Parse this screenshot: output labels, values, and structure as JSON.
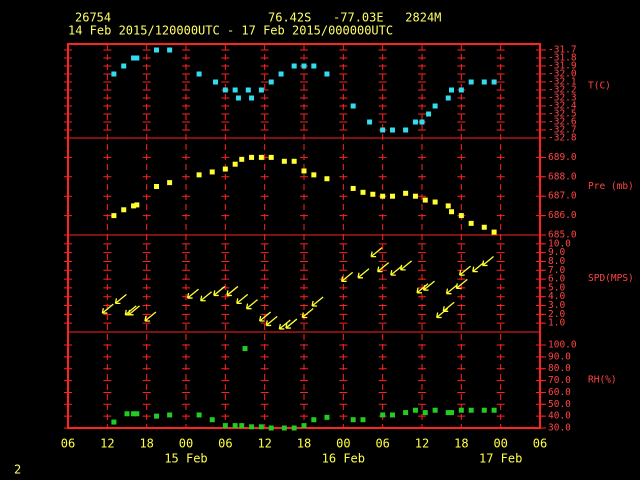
{
  "header": {
    "station": "26754",
    "location": "76.42S   -77.03E   2824M",
    "period": "14 Feb 2015/120000UTC - 17 Feb 2015/000000UTC"
  },
  "page_number": "2",
  "time_axis": {
    "xlim": [
      6,
      78
    ],
    "xticks": [
      {
        "value": 6,
        "label": "06"
      },
      12,
      18,
      {
        "value": 24,
        "label": "00"
      },
      {
        "value": 30,
        "label": "06"
      },
      {
        "value": 36,
        "label": "12"
      },
      {
        "value": 42,
        "label": "18"
      },
      {
        "value": 48,
        "label": "00"
      },
      {
        "value": 54,
        "label": "06"
      },
      {
        "value": 60,
        "label": "12"
      },
      {
        "value": 66,
        "label": "18"
      },
      {
        "value": 72,
        "label": "00"
      },
      {
        "value": 78,
        "label": "06"
      }
    ],
    "dates": [
      {
        "value": 24,
        "label": "15 Feb"
      },
      {
        "value": 48,
        "label": "16 Feb"
      },
      {
        "value": 72,
        "label": "17 Feb"
      }
    ]
  },
  "chart_data": [
    {
      "type": "scatter",
      "label": "T(C)",
      "color": "#33ddee",
      "ylim": [
        -32.8,
        -31.625
      ],
      "yticks": [
        -31.7,
        -31.8,
        -31.9,
        {
          "value": -32.0,
          "label": "-32.0"
        },
        -32.1,
        -32.2,
        -32.3,
        -32.4,
        -32.5,
        -32.6,
        -32.7,
        -32.8
      ],
      "x": [
        13,
        14.5,
        16,
        16.5,
        19.5,
        21.5,
        26,
        28.5,
        30,
        31.5,
        32,
        33.5,
        34,
        35.5,
        37,
        38.5,
        40.5,
        42,
        43.5,
        45.5,
        49.5,
        52,
        54,
        55.5,
        57.5,
        59,
        60,
        61,
        62,
        64,
        64.5,
        66,
        67.5,
        69.5,
        71
      ],
      "values": [
        -32.0,
        -31.9,
        -31.8,
        -31.8,
        -31.7,
        -31.7,
        -32.0,
        -32.1,
        -32.2,
        -32.2,
        -32.3,
        -32.2,
        -32.3,
        -32.2,
        -32.1,
        -32.0,
        -31.9,
        -31.9,
        -31.9,
        -32.0,
        -32.4,
        -32.6,
        -32.7,
        -32.7,
        -32.7,
        -32.6,
        -32.6,
        -32.5,
        -32.4,
        -32.3,
        -32.2,
        -32.2,
        -32.1,
        -32.1,
        -32.1
      ]
    },
    {
      "type": "scatter",
      "label": "Pre (mb)",
      "color": "#ffff33",
      "ylim": [
        685,
        690
      ],
      "yticks": [
        {
          "value": 689,
          "label": "689.0"
        },
        {
          "value": 688,
          "label": "688.0"
        },
        {
          "value": 687,
          "label": "687.0"
        },
        {
          "value": 686,
          "label": "686.0"
        },
        {
          "value": 685,
          "label": "685.0"
        }
      ],
      "x": [
        13,
        14.5,
        16,
        16.5,
        19.5,
        21.5,
        26,
        28,
        30,
        31.5,
        32.5,
        34,
        35.5,
        37,
        39,
        40.5,
        42,
        43.5,
        45.5,
        49.5,
        51,
        52.5,
        54,
        55.5,
        57.5,
        59,
        60.5,
        62,
        64,
        64.5,
        66,
        67.5,
        69.5,
        71
      ],
      "values": [
        686.0,
        686.3,
        686.5,
        686.55,
        687.5,
        687.7,
        688.1,
        688.25,
        688.4,
        688.65,
        688.9,
        689.0,
        689.0,
        689.0,
        688.8,
        688.8,
        688.3,
        688.1,
        687.9,
        687.4,
        687.2,
        687.1,
        687.0,
        687.0,
        687.15,
        687.0,
        686.8,
        686.7,
        686.5,
        686.2,
        686.0,
        685.6,
        685.4,
        685.15
      ]
    },
    {
      "type": "wind",
      "label": "SPD(MPS)",
      "color": "#ffff33",
      "ylim": [
        0,
        11
      ],
      "yticks": [
        {
          "value": 10,
          "label": "10.0"
        },
        {
          "value": 9,
          "label": "9.0"
        },
        {
          "value": 8,
          "label": "8.0"
        },
        {
          "value": 7,
          "label": "7.0"
        },
        {
          "value": 6,
          "label": "6.0"
        },
        {
          "value": 5,
          "label": "5.0"
        },
        {
          "value": 4,
          "label": "4.0"
        },
        {
          "value": 3,
          "label": "3.0"
        },
        {
          "value": 2,
          "label": "2.0"
        },
        {
          "value": 1,
          "label": "1.0"
        }
      ],
      "x": [
        12,
        14,
        15.5,
        16,
        18.5,
        25,
        27,
        29,
        31,
        32.5,
        34,
        36,
        37,
        39,
        40,
        42.5,
        44,
        48.5,
        51,
        53,
        54,
        56,
        57.5,
        60,
        61,
        63,
        64,
        64.5,
        66,
        66.5,
        68.5,
        70
      ],
      "values": [
        2.6,
        3.7,
        2.4,
        2.4,
        1.7,
        4.3,
        4.0,
        4.6,
        4.6,
        3.7,
        3.1,
        1.7,
        1.2,
        0.8,
        0.9,
        2.1,
        3.4,
        6.2,
        6.6,
        9.0,
        7.3,
        6.9,
        7.5,
        4.9,
        5.2,
        2.1,
        2.8,
        4.8,
        5.4,
        6.9,
        7.3,
        8.0
      ]
    },
    {
      "type": "scatter",
      "label": "RH(%)",
      "color": "#22cc22",
      "ylim": [
        30,
        111
      ],
      "yticks": [
        {
          "value": 100,
          "label": "100.0"
        },
        {
          "value": 90,
          "label": "90.0"
        },
        {
          "value": 80,
          "label": "80.0"
        },
        {
          "value": 70,
          "label": "70.0"
        },
        {
          "value": 60,
          "label": "60.0"
        },
        {
          "value": 50,
          "label": "50.0"
        },
        {
          "value": 40,
          "label": "40.0"
        },
        {
          "value": 30,
          "label": "30.0"
        }
      ],
      "x": [
        13,
        15,
        16,
        16.5,
        19.5,
        21.5,
        26,
        28,
        30,
        31.5,
        32.5,
        33,
        34,
        35.5,
        37,
        39,
        40.5,
        42,
        43.5,
        45.5,
        49.5,
        51,
        54,
        55.5,
        57.5,
        59,
        60.5,
        62,
        64,
        64.5,
        66,
        67.5,
        69.5,
        71
      ],
      "values": [
        35,
        42,
        42,
        42,
        40,
        41,
        41,
        37,
        32,
        32,
        32,
        97,
        31,
        31,
        30,
        30,
        30,
        32,
        37,
        39,
        37,
        37,
        41,
        41,
        43,
        45,
        43,
        45,
        43,
        43,
        45,
        45,
        45,
        45
      ]
    }
  ]
}
